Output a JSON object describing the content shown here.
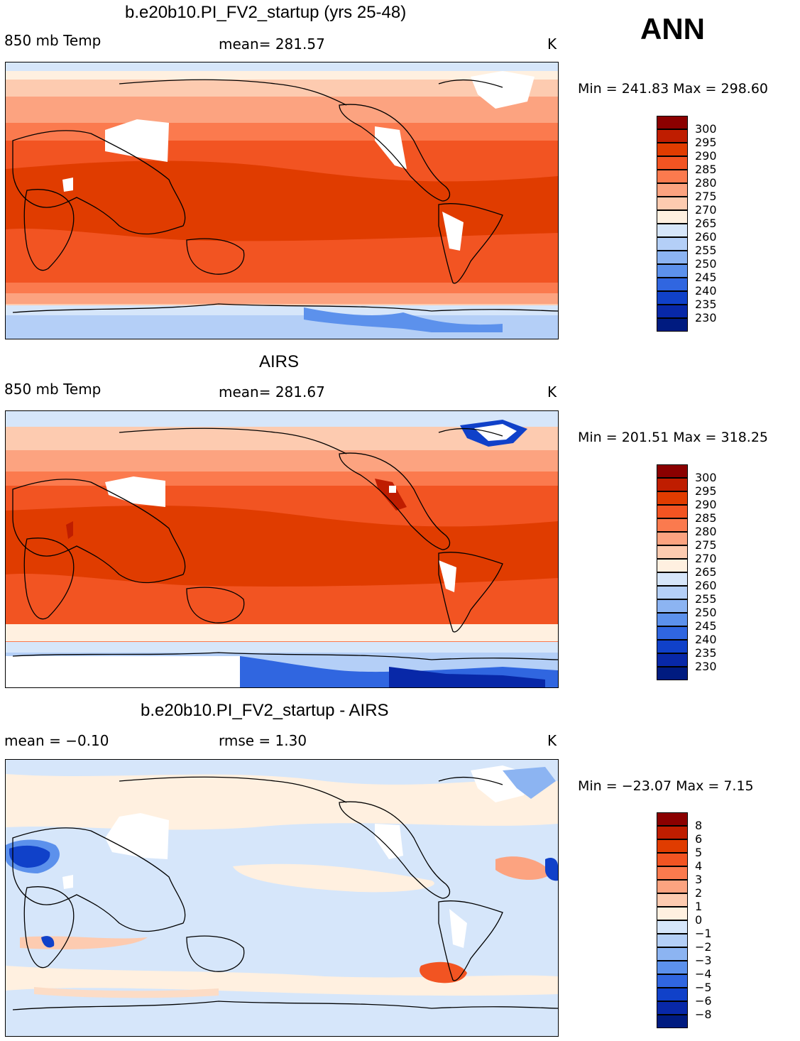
{
  "season_label": "ANN",
  "panels": [
    {
      "id": "model",
      "title": "b.e20b10.PI_FV2_startup (yrs 25-48)",
      "left_label": "850 mb Temp",
      "center_label": "mean= 281.57",
      "units": "K",
      "minmax": "Min = 241.83 Max = 298.60",
      "colorbar_labels": [
        "300",
        "295",
        "290",
        "285",
        "280",
        "275",
        "270",
        "265",
        "260",
        "255",
        "250",
        "245",
        "240",
        "235",
        "230"
      ]
    },
    {
      "id": "obs",
      "title": "AIRS",
      "left_label": "850 mb Temp",
      "center_label": "mean= 281.67",
      "units": "K",
      "minmax": "Min = 201.51 Max = 318.25",
      "colorbar_labels": [
        "300",
        "295",
        "290",
        "285",
        "280",
        "275",
        "270",
        "265",
        "260",
        "255",
        "250",
        "245",
        "240",
        "235",
        "230"
      ]
    },
    {
      "id": "diff",
      "title": "b.e20b10.PI_FV2_startup - AIRS",
      "left_label": "mean =   −0.10",
      "center_label": "rmse =     1.30",
      "units": "K",
      "minmax": "Min = −23.07 Max =     7.15",
      "colorbar_labels": [
        "8",
        "6",
        "5",
        "4",
        "3",
        "2",
        "1",
        "0",
        "−1",
        "−2",
        "−3",
        "−4",
        "−5",
        "−6",
        "−8"
      ]
    }
  ],
  "colors": {
    "temp_scale": [
      "#8b0000",
      "#bf1d00",
      "#e03c00",
      "#f25422",
      "#fb7a4e",
      "#fca380",
      "#fdcbb0",
      "#fff0e0",
      "#d6e6fa",
      "#b4cff7",
      "#8cb4f2",
      "#5c91ec",
      "#3066e0",
      "#1041c9",
      "#0828a8",
      "#001b80"
    ],
    "diff_scale": [
      "#8b0000",
      "#bf1d00",
      "#e03c00",
      "#f25422",
      "#fb7a4e",
      "#fca380",
      "#fdcbb0",
      "#fff0e0",
      "#d6e6fa",
      "#b4cff7",
      "#8cb4f2",
      "#5c91ec",
      "#3066e0",
      "#1041c9",
      "#0828a8",
      "#001b80"
    ]
  }
}
